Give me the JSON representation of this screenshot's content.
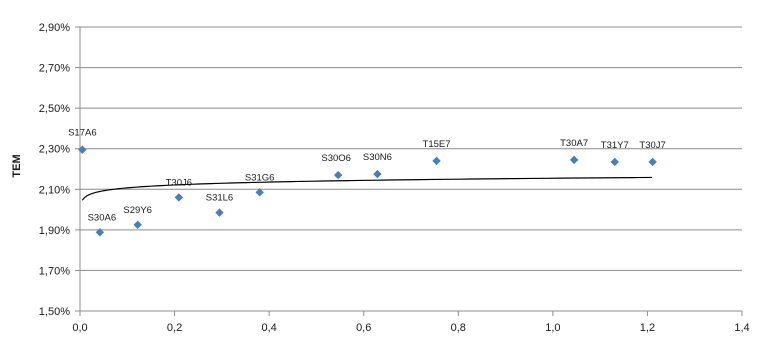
{
  "chart_data": {
    "type": "scatter",
    "title": "",
    "xlabel": "",
    "ylabel": "TEM",
    "xlim": [
      0,
      1.4
    ],
    "ylim": [
      1.5,
      2.9
    ],
    "grid": "horizontal",
    "legend": "none",
    "x_ticks": [
      "0,0",
      "0,2",
      "0,4",
      "0,6",
      "0,8",
      "1,0",
      "1,2",
      "1,4"
    ],
    "y_ticks": [
      "1,50%",
      "1,70%",
      "1,90%",
      "2,10%",
      "2,30%",
      "2,50%",
      "2,70%",
      "2,90%"
    ],
    "marker_color": "#4a7ebb",
    "line_color": "#000000",
    "points": [
      {
        "label": "S17A6",
        "x": 0.005,
        "y": 2.295
      },
      {
        "label": "S30A6",
        "x": 0.042,
        "y": 1.888
      },
      {
        "label": "S29Y6",
        "x": 0.122,
        "y": 1.925
      },
      {
        "label": "T30J6",
        "x": 0.209,
        "y": 2.06
      },
      {
        "label": "S31L6",
        "x": 0.295,
        "y": 1.985
      },
      {
        "label": "S31G6",
        "x": 0.38,
        "y": 2.085
      },
      {
        "label": "S30O6",
        "x": 0.546,
        "y": 2.17
      },
      {
        "label": "S30N6",
        "x": 0.629,
        "y": 2.175
      },
      {
        "label": "T15E7",
        "x": 0.754,
        "y": 2.24
      },
      {
        "label": "T30A7",
        "x": 1.045,
        "y": 2.245
      },
      {
        "label": "T31Y7",
        "x": 1.131,
        "y": 2.235
      },
      {
        "label": "T30J7",
        "x": 1.211,
        "y": 2.235
      }
    ],
    "trendline": {
      "type": "logarithmic",
      "x_range": [
        0.005,
        1.21
      ],
      "samples": [
        [
          0.005,
          2.035
        ],
        [
          0.02,
          2.068
        ],
        [
          0.05,
          2.088
        ],
        [
          0.1,
          2.1
        ],
        [
          0.2,
          2.114
        ],
        [
          0.4,
          2.13
        ],
        [
          0.6,
          2.14
        ],
        [
          0.8,
          2.15
        ],
        [
          1.0,
          2.157
        ],
        [
          1.21,
          2.163
        ]
      ]
    }
  }
}
